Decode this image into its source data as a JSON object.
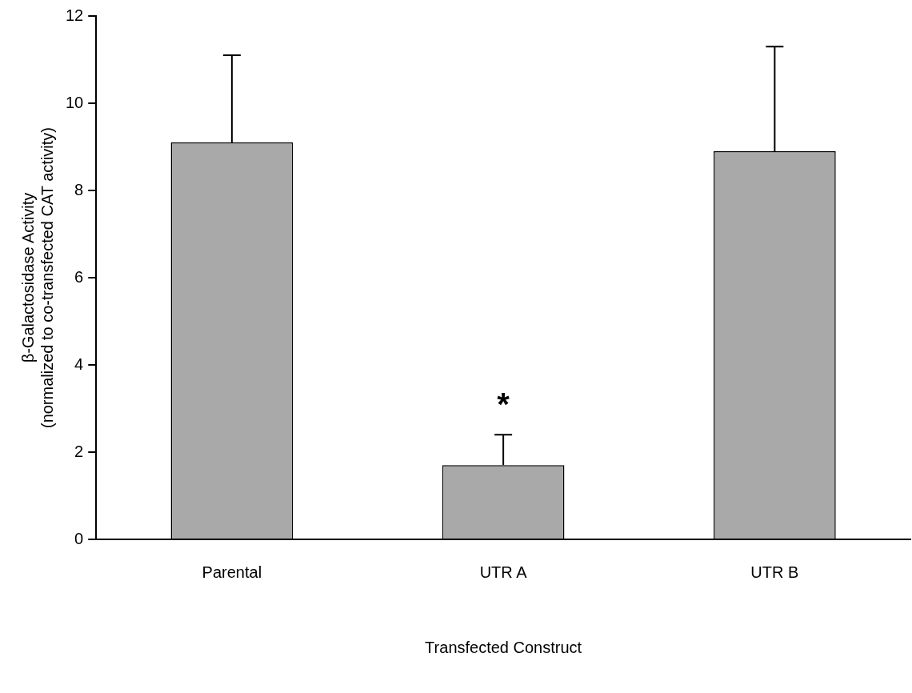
{
  "chart_data": {
    "type": "bar",
    "xlabel": "Transfected Construct",
    "ylabel": "β-Galactosidase Activity\n(normalized to co-transfected CAT activity)",
    "categories": [
      "Parental",
      "UTR A",
      "UTR B"
    ],
    "values": [
      9.1,
      1.7,
      8.9
    ],
    "color": "#a9a9a9",
    "errors": [
      [
        9.1,
        11.1
      ],
      [
        1.7,
        2.4
      ],
      [
        8.9,
        11.3
      ]
    ],
    "ylim": [
      0,
      12
    ],
    "yticks": [
      0,
      2,
      4,
      6,
      8,
      10,
      12
    ],
    "grid": false,
    "legend": false,
    "annotations": [
      "*"
    ]
  }
}
